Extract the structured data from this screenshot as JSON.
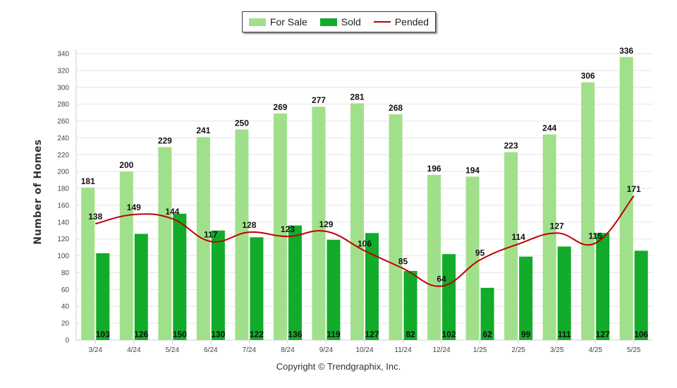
{
  "chart_data": {
    "type": "bar",
    "categories": [
      "3/24",
      "4/24",
      "5/24",
      "6/24",
      "7/24",
      "8/24",
      "9/24",
      "10/24",
      "11/24",
      "12/24",
      "1/25",
      "2/25",
      "3/25",
      "4/25",
      "5/25"
    ],
    "series": [
      {
        "name": "For Sale",
        "kind": "bar",
        "color": "#a1e08a",
        "values": [
          181,
          200,
          229,
          241,
          250,
          269,
          277,
          281,
          268,
          196,
          194,
          223,
          244,
          306,
          336
        ]
      },
      {
        "name": "Sold",
        "kind": "bar",
        "color": "#12ab2a",
        "values": [
          103,
          126,
          150,
          130,
          122,
          136,
          119,
          127,
          82,
          102,
          62,
          99,
          111,
          127,
          106
        ]
      },
      {
        "name": "Pended",
        "kind": "line",
        "color": "#c00000",
        "values": [
          138,
          149,
          144,
          117,
          128,
          123,
          129,
          106,
          85,
          64,
          95,
          114,
          127,
          115,
          171
        ]
      }
    ],
    "ylabel": "Number of Homes",
    "xlabel": "",
    "ylim": [
      0,
      340
    ],
    "yticks": [
      0,
      20,
      40,
      60,
      80,
      100,
      120,
      140,
      160,
      180,
      200,
      220,
      240,
      260,
      280,
      300,
      320,
      340
    ],
    "grid": true,
    "legend_position": "top-center"
  },
  "footer": "Copyright © Trendgraphix, Inc."
}
